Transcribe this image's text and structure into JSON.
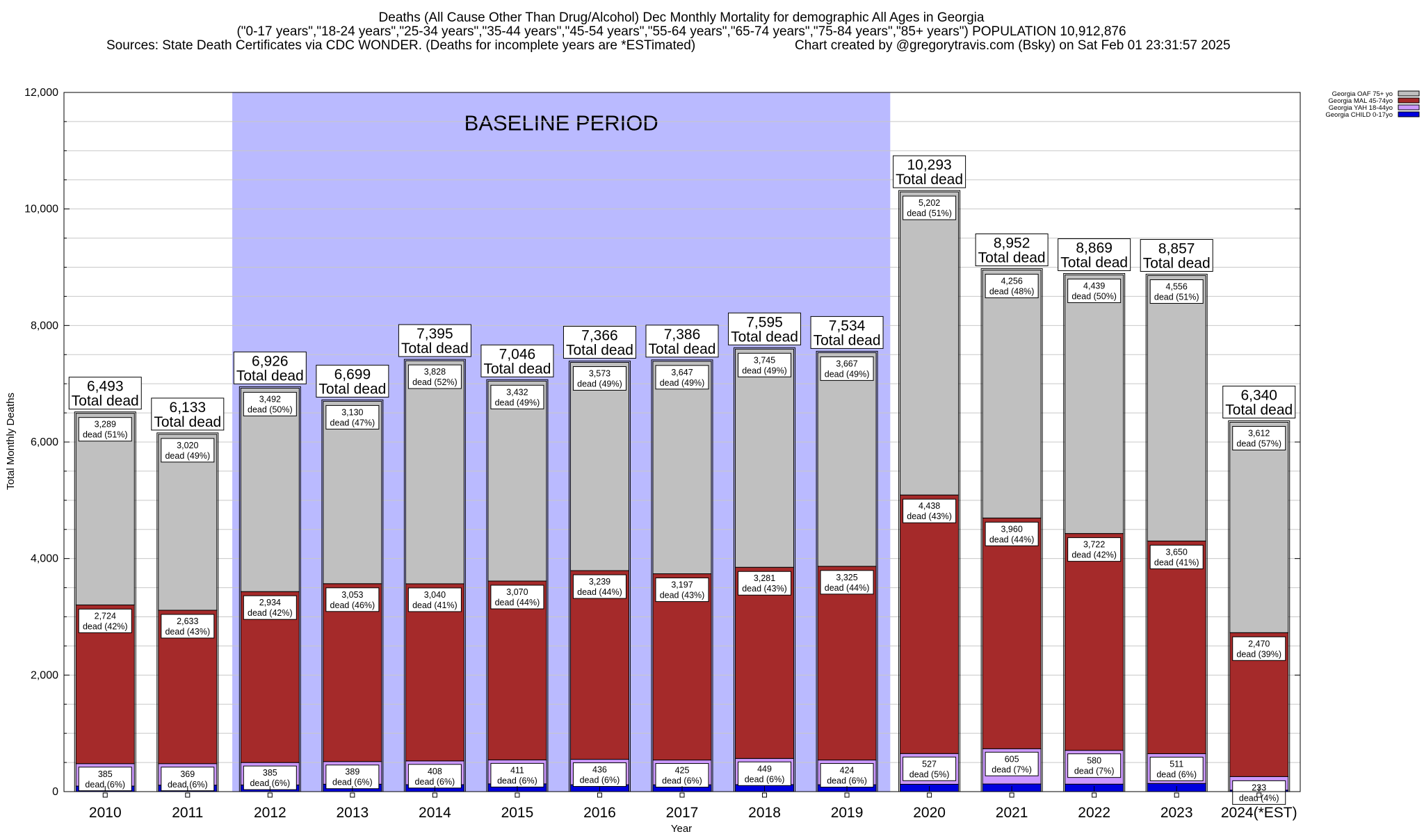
{
  "title": {
    "line1": "Deaths (All Cause Other Than Drug/Alcohol) Dec Monthly Mortality for demographic All Ages in Georgia",
    "line2": "(\"0-17 years\",\"18-24 years\",\"25-34 years\",\"35-44 years\",\"45-54 years\",\"55-64 years\",\"65-74 years\",\"75-84 years\",\"85+ years\") POPULATION 10,912,876",
    "line3_left": "Sources: State Death Certificates via CDC WONDER. (Deaths for incomplete years are *ESTimated)",
    "line3_right": "Chart created by @gregorytravis.com (Bsky) on Sat Feb 01 23:31:57 2025"
  },
  "baseline_label": "BASELINE PERIOD",
  "total_suffix": "Total dead",
  "dead_word": "dead",
  "colors": {
    "oaf": "#c0c0c0",
    "mal": "#a52a2a",
    "yah": "#cc99ff",
    "child": "#0000dd",
    "baseline": "#babaff",
    "grid": "#c8c8c8"
  },
  "chart_data": {
    "type": "bar",
    "stacked": true,
    "xlabel": "Year",
    "ylabel": "Total Monthly Deaths",
    "ylim": [
      0,
      12000
    ],
    "yticks": [
      0,
      2000,
      4000,
      6000,
      8000,
      10000,
      12000
    ],
    "ytick_labels": [
      "0",
      "2,000",
      "4,000",
      "6,000",
      "8,000",
      "10,000",
      "12,000"
    ],
    "grid": true,
    "baseline_period": [
      "2012",
      "2019"
    ],
    "categories": [
      "2010",
      "2011",
      "2012",
      "2013",
      "2014",
      "2015",
      "2016",
      "2017",
      "2018",
      "2019",
      "2020",
      "2021",
      "2022",
      "2023",
      "2024(*EST)"
    ],
    "totals": [
      6493,
      6133,
      6926,
      6699,
      7395,
      7046,
      7366,
      7386,
      7595,
      7534,
      10293,
      8952,
      8869,
      8857,
      6340
    ],
    "total_labels": [
      "6,493",
      "6,133",
      "6,926",
      "6,699",
      "7,395",
      "7,046",
      "7,366",
      "7,386",
      "7,595",
      "7,534",
      "10,293",
      "8,952",
      "8,869",
      "8,857",
      "6,340"
    ],
    "legend_position": "top-right",
    "series": [
      {
        "name": "Georgia CHILD 0-17yo",
        "key": "child",
        "values": [
          95,
          111,
          114,
          127,
          119,
          133,
          118,
          117,
          120,
          118,
          126,
          131,
          128,
          140,
          25
        ],
        "labels": [
          "",
          "",
          "",
          "",
          "",
          "",
          "",
          "",
          "",
          "",
          "",
          "",
          "",
          "",
          ""
        ],
        "pct_labels": [
          "",
          "",
          "",
          "",
          "",
          "",
          "",
          "",
          "",
          "",
          "",
          "",
          "",
          "",
          ""
        ]
      },
      {
        "name": "Georgia YAH 18-44yo",
        "key": "yah",
        "values": [
          385,
          369,
          385,
          389,
          408,
          411,
          436,
          425,
          449,
          424,
          527,
          605,
          580,
          511,
          233
        ],
        "labels": [
          "385",
          "369",
          "385",
          "389",
          "408",
          "411",
          "436",
          "425",
          "449",
          "424",
          "527",
          "605",
          "580",
          "511",
          "233"
        ],
        "pct_labels": [
          "(6%)",
          "(6%)",
          "(6%)",
          "(6%)",
          "(6%)",
          "(6%)",
          "(6%)",
          "(6%)",
          "(6%)",
          "(6%)",
          "(5%)",
          "(7%)",
          "(7%)",
          "(6%)",
          "(4%)"
        ]
      },
      {
        "name": "Georgia MAL 45-74yo",
        "key": "mal",
        "values": [
          2724,
          2633,
          2934,
          3053,
          3040,
          3070,
          3239,
          3197,
          3281,
          3325,
          4438,
          3960,
          3722,
          3650,
          2470
        ],
        "labels": [
          "2,724",
          "2,633",
          "2,934",
          "3,053",
          "3,040",
          "3,070",
          "3,239",
          "3,197",
          "3,281",
          "3,325",
          "4,438",
          "3,960",
          "3,722",
          "3,650",
          "2,470"
        ],
        "pct_labels": [
          "(42%)",
          "(43%)",
          "(42%)",
          "(46%)",
          "(41%)",
          "(44%)",
          "(44%)",
          "(43%)",
          "(43%)",
          "(44%)",
          "(43%)",
          "(44%)",
          "(42%)",
          "(41%)",
          "(39%)"
        ]
      },
      {
        "name": "Georgia OAF 75+ yo",
        "key": "oaf",
        "values": [
          3289,
          3020,
          3492,
          3130,
          3828,
          3432,
          3573,
          3647,
          3745,
          3667,
          5202,
          4256,
          4439,
          4556,
          3612
        ],
        "labels": [
          "3,289",
          "3,020",
          "3,492",
          "3,130",
          "3,828",
          "3,432",
          "3,573",
          "3,647",
          "3,745",
          "3,667",
          "5,202",
          "4,256",
          "4,439",
          "4,556",
          "3,612"
        ],
        "pct_labels": [
          "(51%)",
          "(49%)",
          "(50%)",
          "(47%)",
          "(52%)",
          "(49%)",
          "(49%)",
          "(49%)",
          "(49%)",
          "(49%)",
          "(51%)",
          "(48%)",
          "(50%)",
          "(51%)",
          "(57%)"
        ]
      }
    ],
    "legend_order": [
      "oaf",
      "mal",
      "yah",
      "child"
    ]
  }
}
